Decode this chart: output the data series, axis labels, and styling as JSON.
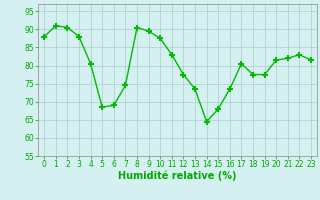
{
  "x": [
    0,
    1,
    2,
    3,
    4,
    5,
    6,
    7,
    8,
    9,
    10,
    11,
    12,
    13,
    14,
    15,
    16,
    17,
    18,
    19,
    20,
    21,
    22,
    23
  ],
  "y": [
    88,
    91,
    90.5,
    88,
    80.5,
    68.5,
    69,
    74.5,
    90.5,
    89.5,
    87.5,
    83,
    77.5,
    73.5,
    64.5,
    68,
    73.5,
    80.5,
    77.5,
    77.5,
    81.5,
    82,
    83,
    81.5
  ],
  "line_color": "#00bb00",
  "marker": "+",
  "marker_size": 5,
  "bg_color": "#d5f0f0",
  "grid_color": "#aacccc",
  "xlabel": "Humidité relative (%)",
  "xlabel_color": "#00aa00",
  "ylim": [
    55,
    97
  ],
  "xlim": [
    -0.5,
    23.5
  ],
  "yticks": [
    55,
    60,
    65,
    70,
    75,
    80,
    85,
    90,
    95
  ],
  "xticks": [
    0,
    1,
    2,
    3,
    4,
    5,
    6,
    7,
    8,
    9,
    10,
    11,
    12,
    13,
    14,
    15,
    16,
    17,
    18,
    19,
    20,
    21,
    22,
    23
  ],
  "tick_fontsize": 5.5,
  "xlabel_fontsize": 7,
  "line_width": 1.0,
  "marker_thickness": 1.5
}
